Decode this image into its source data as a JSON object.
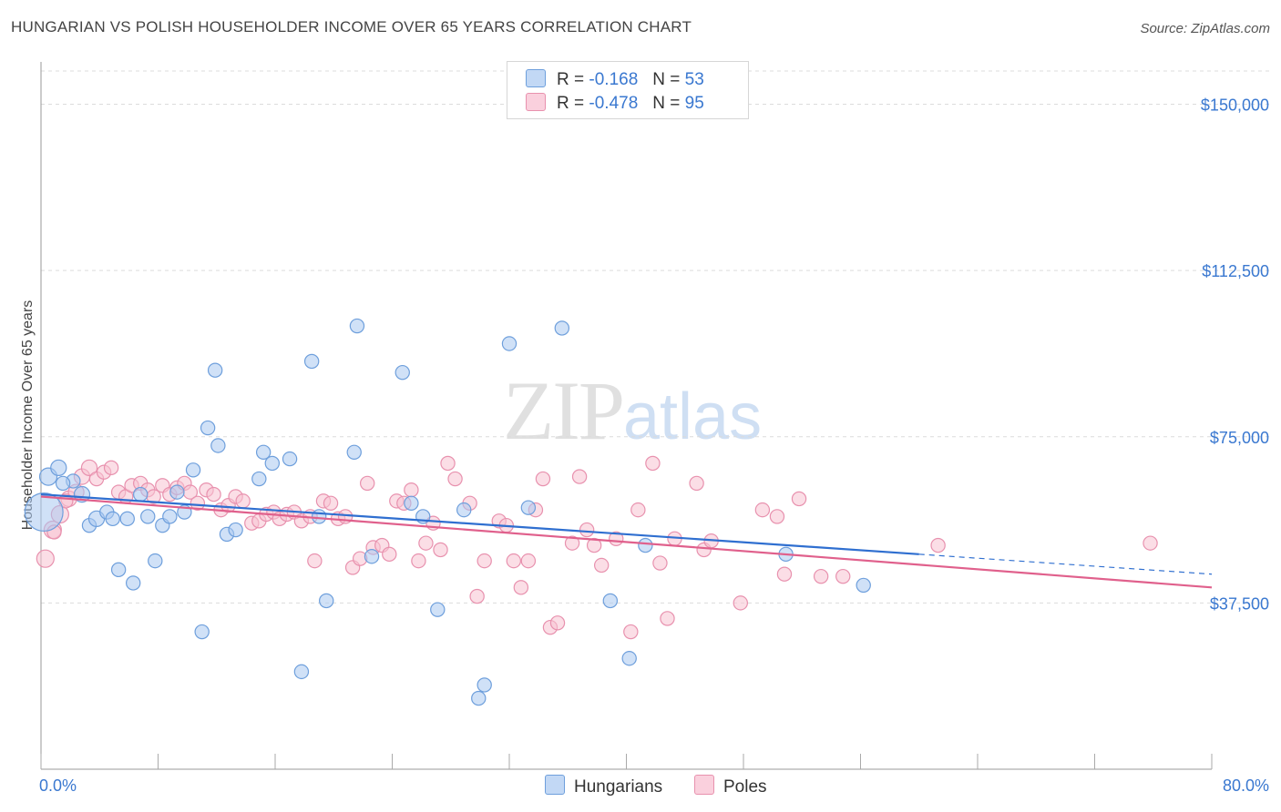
{
  "header": {
    "title": "HUNGARIAN VS POLISH HOUSEHOLDER INCOME OVER 65 YEARS CORRELATION CHART",
    "source": "Source: ZipAtlas.com"
  },
  "watermark": {
    "zip": "ZIP",
    "atlas": "atlas"
  },
  "legend": {
    "r_label": "R =",
    "n_label": "N =",
    "rows": [
      {
        "r": "-0.168",
        "n": "53",
        "color": "#a9c8f0"
      },
      {
        "r": "-0.478",
        "n": "95",
        "color": "#f7b8cc"
      }
    ]
  },
  "bottom_legend": {
    "items": [
      "Hungarians",
      "Poles"
    ]
  },
  "colors": {
    "blue_fill": "#a9c8f0",
    "blue_stroke": "#6e9fdc",
    "blue_line": "#2f6fd0",
    "pink_fill": "#f7c2d2",
    "pink_stroke": "#e891ae",
    "pink_line": "#e0608c",
    "tick_text": "#3a78d0"
  },
  "chart_data": {
    "type": "scatter",
    "title": "HUNGARIAN VS POLISH HOUSEHOLDER INCOME OVER 65 YEARS CORRELATION CHART",
    "xlabel": "",
    "ylabel": "Householder Income Over 65 years",
    "xlim": [
      0,
      80
    ],
    "ylim": [
      0,
      157500
    ],
    "x_tick_labels": [
      "0.0%",
      "80.0%"
    ],
    "y_ticks": [
      37500,
      75000,
      112500,
      150000
    ],
    "y_tick_labels": [
      "$37,500",
      "$75,000",
      "$112,500",
      "$150,000"
    ],
    "grid": "horizontal dashed",
    "series": [
      {
        "name": "Hungarians",
        "r": -0.168,
        "n": 53,
        "trend": {
          "x0": 0,
          "y0": 62000,
          "x1": 60,
          "y1": 48500,
          "dash_to_x": 80,
          "dash_to_y": 44000
        },
        "points": [
          [
            0.2,
            58000,
            22
          ],
          [
            0.5,
            66000,
            10
          ],
          [
            1.2,
            68000,
            9
          ],
          [
            2.2,
            65000,
            8
          ],
          [
            2.8,
            62000,
            9
          ],
          [
            3.3,
            55000,
            8
          ],
          [
            3.8,
            56500,
            9
          ],
          [
            4.5,
            58000,
            8
          ],
          [
            4.9,
            56500,
            8
          ],
          [
            5.3,
            45000,
            8
          ],
          [
            5.9,
            56500,
            8
          ],
          [
            6.3,
            42000,
            8
          ],
          [
            6.8,
            62000,
            8
          ],
          [
            7.3,
            57000,
            8
          ],
          [
            7.8,
            47000,
            8
          ],
          [
            8.3,
            55000,
            8
          ],
          [
            8.8,
            57000,
            8
          ],
          [
            9.3,
            62500,
            8
          ],
          [
            9.8,
            58000,
            8
          ],
          [
            10.4,
            67500,
            8
          ],
          [
            11.0,
            31000,
            8
          ],
          [
            11.4,
            77000,
            8
          ],
          [
            11.9,
            90000,
            8
          ],
          [
            12.1,
            73000,
            8
          ],
          [
            12.7,
            53000,
            8
          ],
          [
            13.3,
            54000,
            8
          ],
          [
            14.9,
            65500,
            8
          ],
          [
            15.2,
            71500,
            8
          ],
          [
            15.8,
            69000,
            8
          ],
          [
            17.0,
            70000,
            8
          ],
          [
            17.8,
            22000,
            8
          ],
          [
            18.5,
            92000,
            8
          ],
          [
            19.0,
            57000,
            8
          ],
          [
            19.5,
            38000,
            8
          ],
          [
            21.4,
            71500,
            8
          ],
          [
            21.6,
            100000,
            8
          ],
          [
            22.6,
            48000,
            8
          ],
          [
            24.7,
            89500,
            8
          ],
          [
            25.3,
            60000,
            8
          ],
          [
            26.1,
            57000,
            8
          ],
          [
            27.1,
            36000,
            8
          ],
          [
            28.9,
            58500,
            8
          ],
          [
            29.9,
            16000,
            8
          ],
          [
            30.3,
            19000,
            8
          ],
          [
            32.0,
            96000,
            8
          ],
          [
            33.3,
            59000,
            8
          ],
          [
            35.6,
            99500,
            8
          ],
          [
            38.9,
            38000,
            8
          ],
          [
            40.2,
            25000,
            8
          ],
          [
            41.3,
            50500,
            8
          ],
          [
            50.9,
            48500,
            8
          ],
          [
            56.2,
            41500,
            8
          ],
          [
            1.5,
            64500,
            8
          ]
        ]
      },
      {
        "name": "Poles",
        "r": -0.478,
        "n": 95,
        "trend": {
          "x0": 0,
          "y0": 61500,
          "x1": 80,
          "y1": 41000
        },
        "points": [
          [
            0.3,
            47500,
            10
          ],
          [
            0.8,
            54000,
            10
          ],
          [
            1.3,
            57500,
            10
          ],
          [
            1.9,
            61000,
            9
          ],
          [
            2.4,
            62500,
            9
          ],
          [
            2.8,
            66000,
            9
          ],
          [
            3.3,
            68000,
            9
          ],
          [
            3.8,
            65500,
            8
          ],
          [
            4.3,
            67000,
            8
          ],
          [
            4.8,
            68000,
            8
          ],
          [
            5.3,
            62500,
            8
          ],
          [
            5.8,
            61500,
            8
          ],
          [
            6.2,
            64000,
            8
          ],
          [
            6.8,
            64500,
            8
          ],
          [
            7.3,
            63000,
            8
          ],
          [
            7.7,
            61500,
            8
          ],
          [
            8.3,
            64000,
            8
          ],
          [
            8.8,
            62000,
            8
          ],
          [
            9.3,
            63500,
            8
          ],
          [
            9.8,
            64500,
            8
          ],
          [
            10.2,
            62500,
            8
          ],
          [
            10.7,
            60000,
            8
          ],
          [
            11.3,
            63000,
            8
          ],
          [
            11.8,
            62000,
            8
          ],
          [
            12.3,
            58500,
            8
          ],
          [
            12.8,
            59500,
            8
          ],
          [
            13.3,
            61500,
            8
          ],
          [
            13.8,
            60500,
            8
          ],
          [
            14.4,
            55500,
            8
          ],
          [
            14.9,
            56000,
            8
          ],
          [
            15.4,
            57500,
            8
          ],
          [
            15.9,
            58000,
            8
          ],
          [
            16.3,
            56500,
            8
          ],
          [
            16.8,
            57500,
            8
          ],
          [
            17.3,
            58000,
            8
          ],
          [
            17.8,
            56000,
            8
          ],
          [
            18.4,
            57000,
            8
          ],
          [
            18.7,
            47000,
            8
          ],
          [
            19.3,
            60500,
            8
          ],
          [
            19.8,
            60000,
            8
          ],
          [
            20.3,
            56500,
            8
          ],
          [
            20.8,
            57000,
            8
          ],
          [
            21.3,
            45500,
            8
          ],
          [
            21.8,
            47500,
            8
          ],
          [
            22.3,
            64500,
            8
          ],
          [
            22.7,
            50000,
            8
          ],
          [
            23.3,
            50500,
            8
          ],
          [
            23.8,
            48500,
            8
          ],
          [
            24.3,
            60500,
            8
          ],
          [
            24.8,
            60000,
            8
          ],
          [
            25.3,
            63000,
            8
          ],
          [
            25.8,
            47000,
            8
          ],
          [
            26.3,
            51000,
            8
          ],
          [
            26.8,
            55500,
            8
          ],
          [
            27.3,
            49500,
            8
          ],
          [
            27.8,
            69000,
            8
          ],
          [
            28.3,
            65500,
            8
          ],
          [
            29.3,
            60000,
            8
          ],
          [
            29.8,
            39000,
            8
          ],
          [
            30.3,
            47000,
            8
          ],
          [
            31.3,
            56000,
            8
          ],
          [
            31.8,
            55000,
            8
          ],
          [
            32.3,
            47000,
            8
          ],
          [
            32.8,
            41000,
            8
          ],
          [
            33.3,
            47000,
            8
          ],
          [
            33.8,
            58500,
            8
          ],
          [
            34.3,
            65500,
            8
          ],
          [
            34.8,
            32000,
            8
          ],
          [
            35.3,
            33000,
            8
          ],
          [
            36.3,
            51000,
            8
          ],
          [
            36.8,
            66000,
            8
          ],
          [
            37.3,
            54000,
            8
          ],
          [
            37.8,
            50500,
            8
          ],
          [
            38.3,
            46000,
            8
          ],
          [
            39.3,
            52000,
            8
          ],
          [
            40.3,
            31000,
            8
          ],
          [
            40.8,
            58500,
            8
          ],
          [
            41.8,
            69000,
            8
          ],
          [
            42.3,
            46500,
            8
          ],
          [
            42.8,
            34000,
            8
          ],
          [
            43.3,
            52000,
            8
          ],
          [
            44.8,
            64500,
            8
          ],
          [
            45.3,
            49500,
            8
          ],
          [
            45.8,
            51500,
            8
          ],
          [
            47.8,
            37500,
            8
          ],
          [
            49.3,
            58500,
            8
          ],
          [
            50.3,
            57000,
            8
          ],
          [
            50.8,
            44000,
            8
          ],
          [
            51.8,
            61000,
            8
          ],
          [
            53.3,
            43500,
            8
          ],
          [
            54.8,
            43500,
            8
          ],
          [
            61.3,
            50500,
            8
          ],
          [
            75.8,
            51000,
            8
          ],
          [
            0.9,
            53500,
            8
          ],
          [
            1.7,
            60500,
            8
          ]
        ]
      }
    ]
  }
}
